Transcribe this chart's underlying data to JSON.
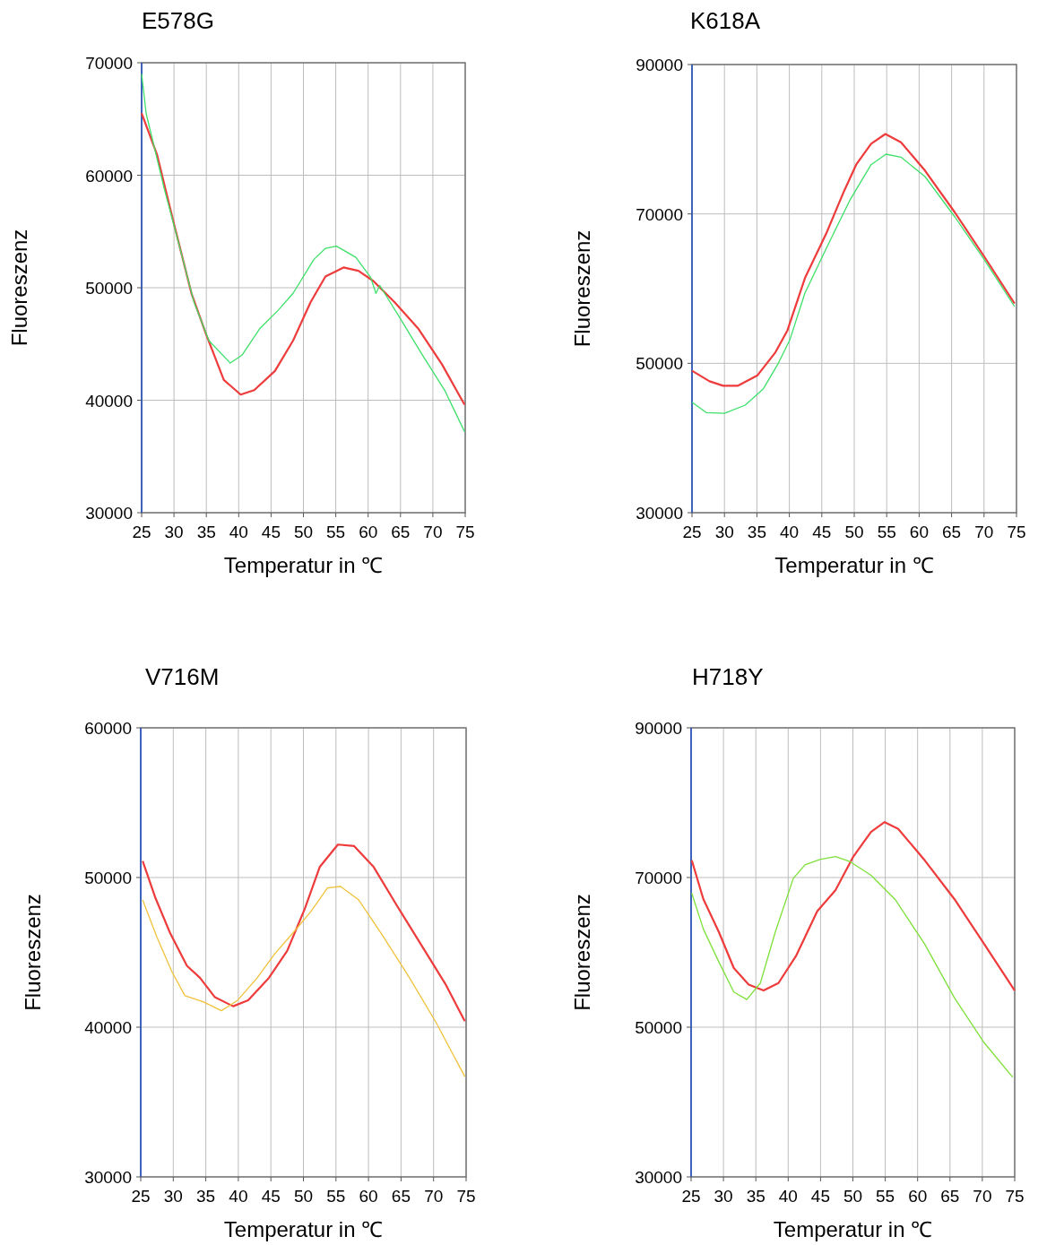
{
  "chart_data": [
    {
      "type": "line",
      "title": "E578G",
      "xlabel": "Temperatur in ℃",
      "ylabel": "Fluoreszenz",
      "xlim": [
        25,
        75
      ],
      "xticks": [
        25,
        30,
        35,
        40,
        45,
        50,
        55,
        60,
        65,
        70,
        75
      ],
      "ylim": [
        30000,
        70000
      ],
      "yticks": [
        30000,
        40000,
        50000,
        60000,
        70000
      ],
      "grid": true,
      "series": [
        {
          "color": "#ee3b3b",
          "x": [
            25,
            27.4,
            29.9,
            32.7,
            35,
            37.7,
            40.3,
            42.4,
            45.6,
            48.4,
            51.1,
            53.4,
            56.2,
            58.5,
            60.8,
            64.1,
            67.7,
            71.4,
            74.9
          ],
          "values": [
            65500,
            61800,
            55900,
            49500,
            45800,
            41800,
            40500,
            40900,
            42600,
            45300,
            48700,
            51000,
            51800,
            51500,
            50600,
            48700,
            46400,
            43200,
            39600
          ]
        },
        {
          "color": "#3ee06a",
          "x": [
            25,
            25.7,
            28.5,
            30.8,
            33.1,
            35.4,
            38.7,
            40.5,
            43.3,
            46.1,
            48.4,
            51.6,
            53.4,
            55.1,
            58.1,
            60.4,
            61.2,
            61.8,
            64.5,
            68.2,
            71.9,
            74.9
          ],
          "values": [
            69000,
            65500,
            58800,
            53800,
            48700,
            45300,
            43300,
            44000,
            46400,
            48000,
            49500,
            52500,
            53500,
            53700,
            52700,
            50900,
            49500,
            50200,
            47700,
            44200,
            40800,
            37200
          ]
        }
      ]
    },
    {
      "type": "line",
      "title": "K618A",
      "xlabel": "Temperatur in ℃",
      "ylabel": "Fluoreszenz",
      "xlim": [
        25,
        75
      ],
      "xticks": [
        25,
        30,
        35,
        40,
        45,
        50,
        55,
        60,
        65,
        70,
        75
      ],
      "ylim": [
        30000,
        90000
      ],
      "yticks": [
        30000,
        50000,
        70000,
        90000
      ],
      "grid": true,
      "series": [
        {
          "color": "#ee3b3b",
          "x": [
            25,
            27.7,
            29.8,
            32.1,
            35.1,
            37.8,
            39.7,
            42.4,
            45.7,
            48.4,
            50.3,
            52.6,
            54.8,
            57.2,
            60.9,
            65.5,
            70.1,
            74.7
          ],
          "values": [
            49000,
            47600,
            47000,
            47000,
            48400,
            51400,
            54400,
            61400,
            67400,
            73000,
            76600,
            79400,
            80700,
            79600,
            75800,
            70200,
            64200,
            58000
          ]
        },
        {
          "color": "#3ee06a",
          "x": [
            25,
            27.2,
            30,
            33.2,
            36,
            38.3,
            40.1,
            42.4,
            45.7,
            49.3,
            52.6,
            54.9,
            57.2,
            60.9,
            65.5,
            70.1,
            74.7
          ],
          "values": [
            44800,
            43400,
            43300,
            44400,
            46600,
            50000,
            53200,
            59400,
            65400,
            71800,
            76600,
            78000,
            77600,
            75000,
            69600,
            63800,
            57600
          ]
        }
      ]
    },
    {
      "type": "line",
      "title": "V716M",
      "xlabel": "Temperatur in ℃",
      "ylabel": "Fluoreszenz",
      "xlim": [
        25,
        75
      ],
      "xticks": [
        25,
        30,
        35,
        40,
        45,
        50,
        55,
        60,
        65,
        70,
        75
      ],
      "ylim": [
        30000,
        60000
      ],
      "yticks": [
        30000,
        40000,
        50000,
        60000
      ],
      "grid": true,
      "series": [
        {
          "color": "#ee3b3b",
          "x": [
            25.3,
            27.2,
            29.5,
            32.1,
            34.1,
            36.4,
            39.2,
            41.5,
            44.7,
            47.5,
            50.2,
            52.5,
            55.3,
            57.8,
            60.8,
            64.4,
            68.1,
            71.8,
            74.8
          ],
          "values": [
            51100,
            48700,
            46300,
            44100,
            43300,
            42000,
            41400,
            41800,
            43300,
            45100,
            47900,
            50700,
            52200,
            52100,
            50700,
            48100,
            45500,
            42900,
            40400
          ]
        },
        {
          "color": "#f0c23c",
          "x": [
            25.3,
            27.5,
            29.8,
            31.8,
            34.6,
            37.4,
            39.9,
            42.9,
            45.6,
            48.4,
            51.1,
            53.7,
            55.7,
            58.5,
            62.2,
            66.3,
            70.4,
            74.8
          ],
          "values": [
            48500,
            46000,
            43700,
            42100,
            41700,
            41100,
            41800,
            43300,
            44900,
            46300,
            47700,
            49300,
            49400,
            48500,
            46100,
            43300,
            40300,
            36700
          ]
        }
      ]
    },
    {
      "type": "line",
      "title": "H718Y",
      "xlabel": "Temperatur in ℃",
      "ylabel": "Fluoreszenz",
      "xlim": [
        25,
        75
      ],
      "xticks": [
        25,
        30,
        35,
        40,
        45,
        50,
        55,
        60,
        65,
        70,
        75
      ],
      "ylim": [
        30000,
        90000
      ],
      "yticks": [
        30000,
        50000,
        70000,
        90000
      ],
      "grid": true,
      "series": [
        {
          "color": "#ee3b3b",
          "x": [
            25.1,
            26.9,
            29.3,
            31.6,
            33.9,
            36.2,
            38.5,
            41.2,
            44.5,
            47.3,
            50,
            52.8,
            54.9,
            57,
            61.1,
            65.7,
            70.3,
            75
          ],
          "values": [
            72300,
            67100,
            62700,
            57900,
            55700,
            54900,
            55900,
            59500,
            65500,
            68300,
            72700,
            76100,
            77400,
            76500,
            72300,
            67100,
            61100,
            54900
          ]
        },
        {
          "color": "#7ee03a",
          "x": [
            25.1,
            26.9,
            29.3,
            31.6,
            33.6,
            35.7,
            38,
            40.8,
            42.6,
            44.9,
            47.3,
            49.6,
            52.8,
            56.5,
            61.1,
            65.7,
            70.3,
            74.7
          ],
          "values": [
            67900,
            63100,
            58700,
            54700,
            53700,
            55900,
            62700,
            69900,
            71700,
            72400,
            72800,
            72100,
            70300,
            67100,
            61100,
            53900,
            47900,
            43300
          ]
        }
      ]
    }
  ]
}
